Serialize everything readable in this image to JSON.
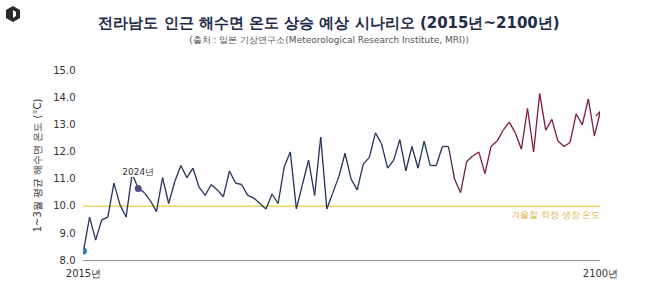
{
  "chart_data": {
    "type": "line",
    "title": "전라남도 인근 해수면 온도 상승 예상 시나리오 (2015년~2100년)",
    "subtitle": "(출처 : 일본 기상연구소(Meteorological Research Institute, MRI))",
    "y_label": "1~3월 평균 해수면 온도 (°C)",
    "x": [
      2015,
      2016,
      2017,
      2018,
      2019,
      2020,
      2021,
      2022,
      2023,
      2024,
      2025,
      2026,
      2027,
      2028,
      2029,
      2030,
      2031,
      2032,
      2033,
      2034,
      2035,
      2036,
      2037,
      2038,
      2039,
      2040,
      2041,
      2042,
      2043,
      2044,
      2045,
      2046,
      2047,
      2048,
      2049,
      2050,
      2051,
      2052,
      2053,
      2054,
      2055,
      2056,
      2057,
      2058,
      2059,
      2060,
      2061,
      2062,
      2063,
      2064,
      2065,
      2066,
      2067,
      2068,
      2069,
      2070,
      2071,
      2072,
      2073,
      2074,
      2075,
      2076,
      2077,
      2078,
      2079,
      2080,
      2081,
      2082,
      2083,
      2084,
      2085,
      2086,
      2087,
      2088,
      2089,
      2090,
      2091,
      2092,
      2093,
      2094,
      2095,
      2096,
      2097,
      2098,
      2099,
      2100
    ],
    "values": [
      8.35,
      9.6,
      8.75,
      9.5,
      9.6,
      10.85,
      10.05,
      9.6,
      11.2,
      10.65,
      10.5,
      10.2,
      9.8,
      11.05,
      10.1,
      10.9,
      11.5,
      11.05,
      11.4,
      10.7,
      10.4,
      10.8,
      10.6,
      10.35,
      11.3,
      10.85,
      10.8,
      10.4,
      10.3,
      10.1,
      9.9,
      10.45,
      10.1,
      11.45,
      12.0,
      9.9,
      10.8,
      11.7,
      10.4,
      12.55,
      9.9,
      10.5,
      11.1,
      11.95,
      11.0,
      10.6,
      11.55,
      11.8,
      12.7,
      12.3,
      11.4,
      11.7,
      12.45,
      11.3,
      12.2,
      11.4,
      12.4,
      11.5,
      11.5,
      12.2,
      12.2,
      11.0,
      10.5,
      11.65,
      11.85,
      12.0,
      11.2,
      12.2,
      12.4,
      12.8,
      13.1,
      12.7,
      12.1,
      13.6,
      12.0,
      14.15,
      12.8,
      13.2,
      12.4,
      12.2,
      12.35,
      13.4,
      13.0,
      13.95,
      12.6,
      13.5
    ],
    "colors": [
      "#3a78b5",
      "#23345a",
      "#23345a",
      "#23345a",
      "#23345a",
      "#23345a",
      "#23345a",
      "#23345a",
      "#23345a",
      "#23345a",
      "#23345a",
      "#23345a",
      "#23345a",
      "#23345a",
      "#23345a",
      "#23345a",
      "#23345a",
      "#23345a",
      "#23345a",
      "#23345a",
      "#23345a",
      "#23345a",
      "#23345a",
      "#23345a",
      "#23345a",
      "#23345a",
      "#23345a",
      "#23345a",
      "#23345a",
      "#23345a",
      "#23345a",
      "#23345a",
      "#23345a",
      "#23345a",
      "#23345a",
      "#23345a",
      "#23345a",
      "#23345a",
      "#23345a",
      "#23345a",
      "#23345a",
      "#23345a",
      "#23345a",
      "#23345a",
      "#23345a",
      "#23345a",
      "#23345a",
      "#23345a",
      "#23345a",
      "#23345a",
      "#23345a",
      "#23345a",
      "#23345a",
      "#23345a",
      "#23345a",
      "#23345a",
      "#23345a",
      "#23345a",
      "#23345a",
      "#23345a",
      "#3a2f56",
      "#4a2a50",
      "#5a2649",
      "#6a2243",
      "#741f3e",
      "#7a1d3a",
      "#7f1b38",
      "#7f1b38",
      "#7f1b38",
      "#7f1b38",
      "#7f1b38",
      "#7f1b38",
      "#7f1b38",
      "#7f1b38",
      "#7f1b38",
      "#7f1b38",
      "#7f1b38",
      "#7f1b38",
      "#7f1b38",
      "#7f1b38",
      "#7f1b38",
      "#7f1b38",
      "#7f1b38",
      "#7f1b38",
      "#7f1b38",
      "#7f1b38"
    ],
    "xlim": [
      2015,
      2100
    ],
    "xticks": [
      {
        "value": 2015,
        "label": "2015년"
      },
      {
        "value": 2100,
        "label": "2100년"
      }
    ],
    "ylim": [
      8,
      15
    ],
    "yticks": [
      8,
      9,
      10,
      11,
      12,
      13,
      14,
      15
    ],
    "grid": false,
    "reference_line": {
      "y": 10,
      "label": "겨울철 적정 생장 온도",
      "color": "#f2d36b"
    },
    "annotations": [
      {
        "x": 2024,
        "label": "2024년",
        "color": "#5b4d7a"
      }
    ]
  }
}
